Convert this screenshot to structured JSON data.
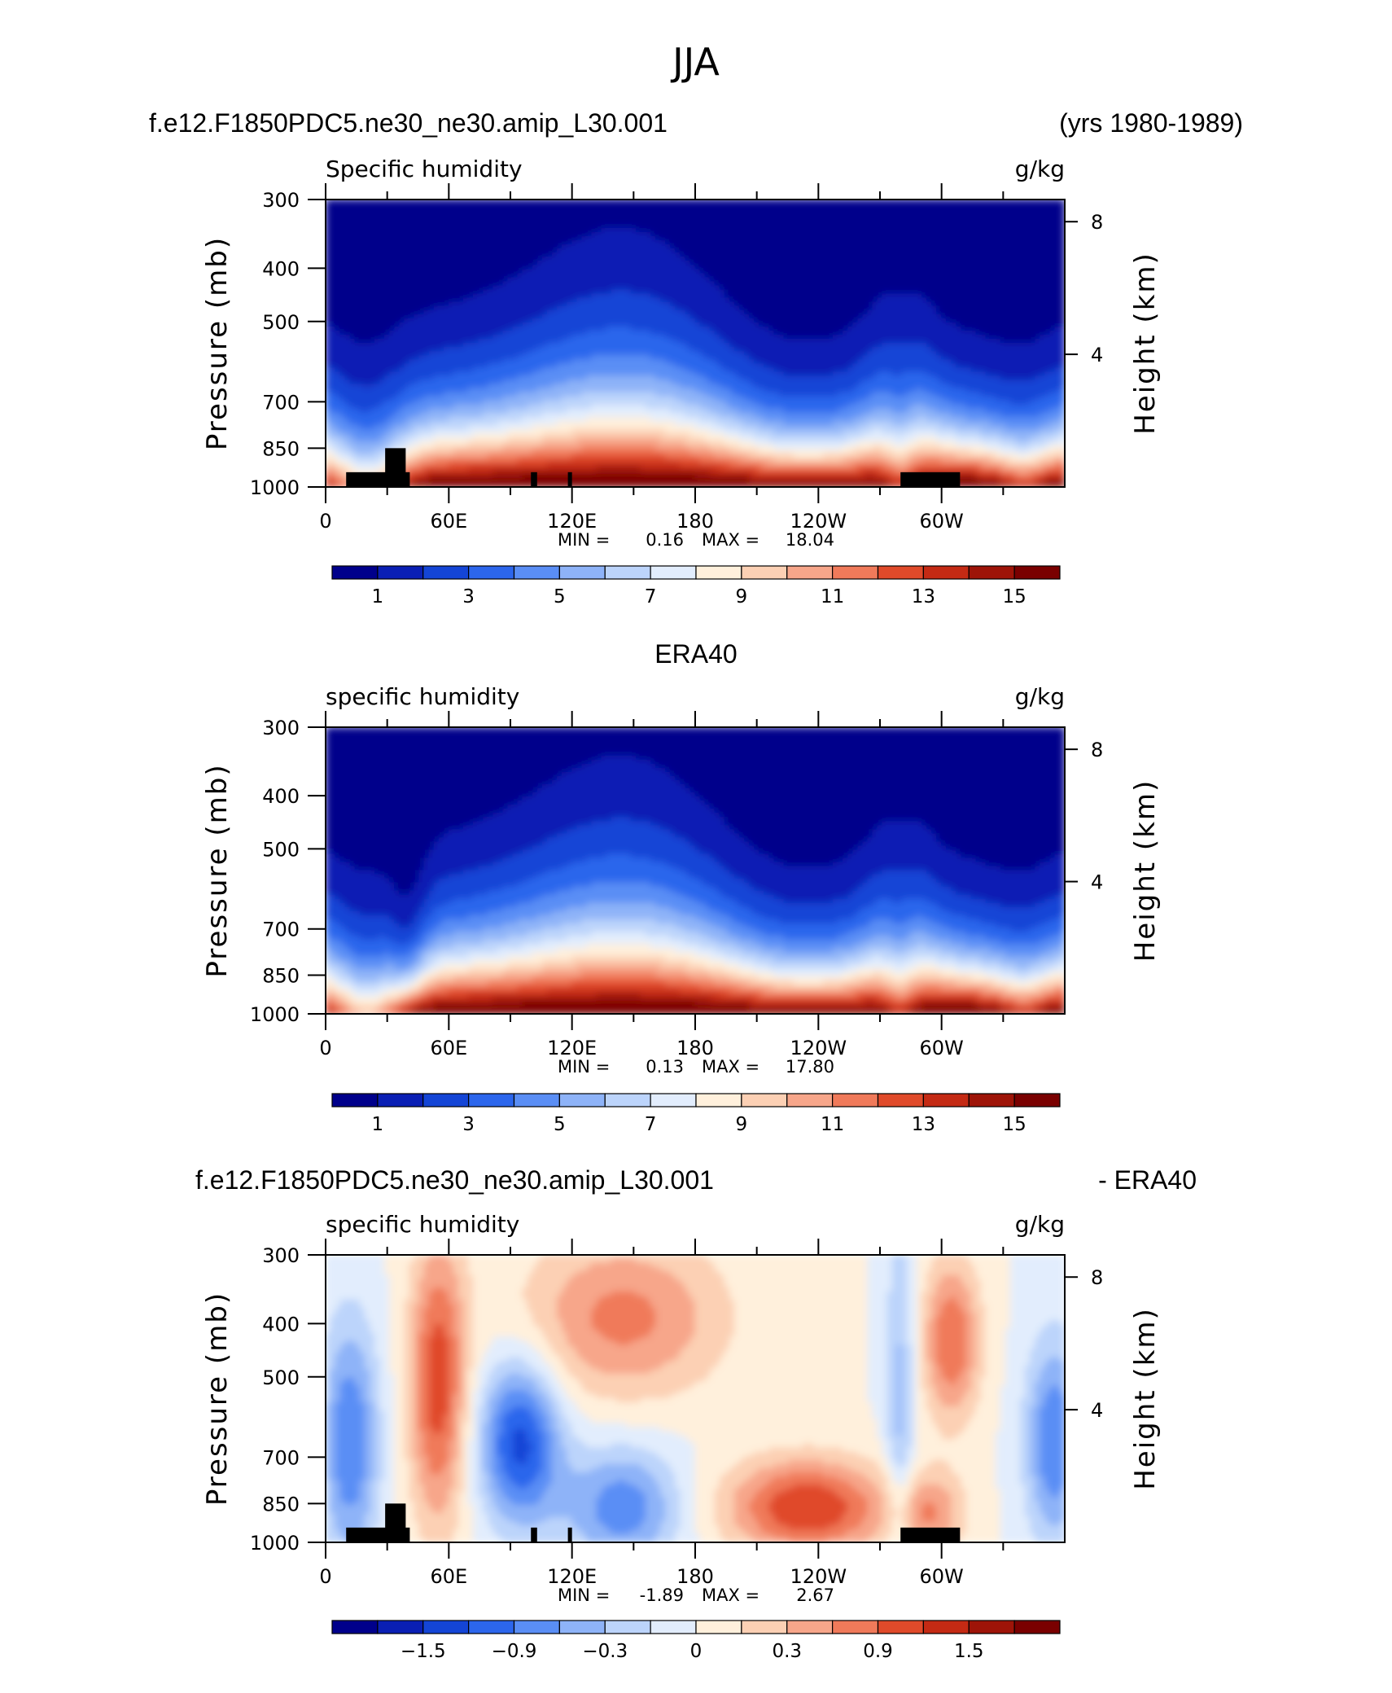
{
  "title": "JJA",
  "case_name": "f.e12.F1850PDC5.ne30_ne30.amip_L30.001",
  "years": "(yrs 1980-1989)",
  "obs_name": "ERA40",
  "diff_suffix": "- ERA40",
  "colors": {
    "full": [
      "#00008b",
      "#0a1fb4",
      "#1445d6",
      "#2c66ec",
      "#5a8ef5",
      "#8eb3f8",
      "#bcd4fb",
      "#e2edfd",
      "#fff0dc",
      "#fcd0b4",
      "#f7a68a",
      "#f07a5a",
      "#e04a2a",
      "#c42a14",
      "#9e1408",
      "#7a0000"
    ],
    "diff": [
      "#00008b",
      "#0a1fb4",
      "#1445d6",
      "#2c66ec",
      "#5a8ef5",
      "#8eb3f8",
      "#bcd4fb",
      "#e2edfd",
      "#fff0dc",
      "#fcd0b4",
      "#f7a68a",
      "#f07a5a",
      "#e04a2a",
      "#c42a14",
      "#9e1408",
      "#7a0000"
    ],
    "terrain": "#000000"
  },
  "chart_data": [
    {
      "type": "heatmap",
      "title": "f.e12.F1850PDC5.ne30_ne30.amip_L30.001",
      "right_title": "(yrs 1980-1989)",
      "left_string": "Specific humidity",
      "right_string": "g/kg",
      "ylabel": "Pressure (mb)",
      "ylabel_right": "Height (km)",
      "x_tick_labels": [
        "0",
        "60E",
        "120E",
        "180",
        "120W",
        "60W"
      ],
      "y_tick_labels": [
        "300",
        "400",
        "500",
        "700",
        "850",
        "1000"
      ],
      "y_right_tick_labels": [
        "8",
        "4"
      ],
      "min_max_text": {
        "min_label": "MIN =",
        "min": "0.16",
        "max_label": "MAX =",
        "max": "18.04"
      },
      "colorbar_labels": [
        "1",
        "3",
        "5",
        "7",
        "9",
        "11",
        "13",
        "15"
      ],
      "xlim": [
        0,
        360
      ],
      "ylim": [
        1000,
        300
      ],
      "field": {
        "lon": [
          0,
          15,
          30,
          40,
          50,
          60,
          75,
          90,
          105,
          120,
          135,
          150,
          165,
          180,
          195,
          210,
          225,
          240,
          255,
          265,
          270,
          285,
          300,
          315,
          330,
          345,
          360
        ],
        "lev": [
          1000,
          950,
          900,
          850,
          800,
          750,
          700,
          650,
          600,
          550,
          500,
          450,
          400,
          350,
          300
        ],
        "value": "specific humidity estimated from contour shading"
      }
    },
    {
      "type": "heatmap",
      "title": "ERA40",
      "left_string": "specific humidity",
      "right_string": "g/kg",
      "ylabel": "Pressure (mb)",
      "ylabel_right": "Height (km)",
      "x_tick_labels": [
        "0",
        "60E",
        "120E",
        "180",
        "120W",
        "60W"
      ],
      "y_tick_labels": [
        "300",
        "400",
        "500",
        "700",
        "850",
        "1000"
      ],
      "y_right_tick_labels": [
        "8",
        "4"
      ],
      "min_max_text": {
        "min_label": "MIN =",
        "min": "0.13",
        "max_label": "MAX =",
        "max": "17.80"
      },
      "colorbar_labels": [
        "1",
        "3",
        "5",
        "7",
        "9",
        "11",
        "13",
        "15"
      ],
      "xlim": [
        0,
        360
      ],
      "ylim": [
        1000,
        300
      ]
    },
    {
      "type": "heatmap",
      "title": "f.e12.F1850PDC5.ne30_ne30.amip_L30.001",
      "right_title": "- ERA40",
      "left_string": "specific humidity",
      "right_string": "g/kg",
      "ylabel": "Pressure (mb)",
      "ylabel_right": "Height (km)",
      "x_tick_labels": [
        "0",
        "60E",
        "120E",
        "180",
        "120W",
        "60W"
      ],
      "y_tick_labels": [
        "300",
        "400",
        "500",
        "700",
        "850",
        "1000"
      ],
      "y_right_tick_labels": [
        "8",
        "4"
      ],
      "min_max_text": {
        "min_label": "MIN =",
        "min": "-1.89",
        "max_label": "MAX =",
        "max": "2.67"
      },
      "colorbar_labels": [
        "-1.5",
        "-0.9",
        "-0.3",
        "0",
        "0.3",
        "0.9",
        "1.5"
      ],
      "xlim": [
        0,
        360
      ],
      "ylim": [
        1000,
        300
      ]
    }
  ]
}
